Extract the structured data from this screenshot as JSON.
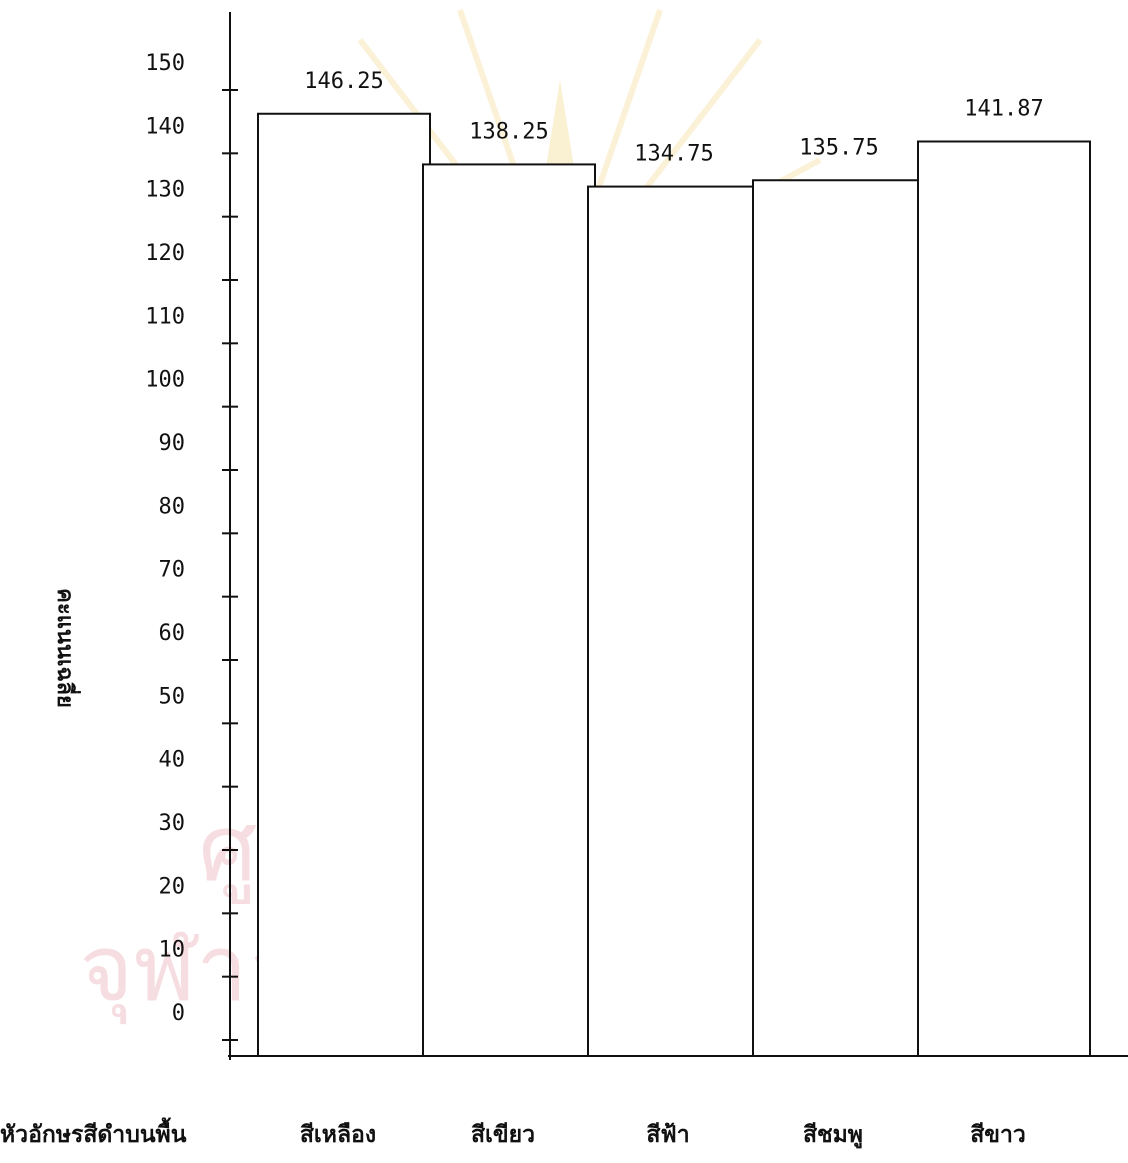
{
  "chart_data": {
    "type": "bar",
    "categories": [
      "สีเหลือง",
      "สีเขียว",
      "สีฟ้า",
      "สีชมพู",
      "สีขาว"
    ],
    "values": [
      146.25,
      138.25,
      134.75,
      135.75,
      141.87
    ],
    "value_labels": [
      "146.25",
      "138.25",
      "134.75",
      "135.75",
      "141.87"
    ],
    "ylabel": "คะแนนเฉลี่ย",
    "xlabel": "หัวอักษรสีดำบนพื้น",
    "ylim": [
      0,
      150
    ],
    "yticks": [
      "0",
      "10",
      "20",
      "30",
      "40",
      "50",
      "60",
      "70",
      "80",
      "90",
      "100",
      "110",
      "120",
      "130",
      "140",
      "150"
    ],
    "grid": false,
    "legend": "none"
  },
  "watermark": {
    "line1": "ศูนย์วิทยทรัพยากร",
    "line2": "จุฬาลงกรณ์มหาวิทยาลัย",
    "color": "#f0c2c9"
  }
}
